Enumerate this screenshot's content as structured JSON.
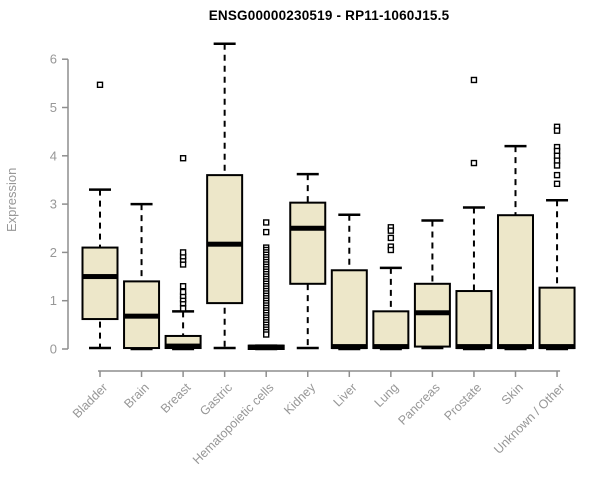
{
  "figure": {
    "title": "ENSG00000230519 - RP11-1060J15.5",
    "y_axis_label": "Expression"
  },
  "chart_data": {
    "type": "boxplot",
    "title": "ENSG00000230519 - RP11-1060J15.5",
    "xlabel": "",
    "ylabel": "Expression",
    "ylim": [
      0,
      6.4
    ],
    "yticks": [
      0,
      1,
      2,
      3,
      4,
      5,
      6
    ],
    "grid": false,
    "legend": false,
    "categories": [
      "Bladder",
      "Brain",
      "Breast",
      "Gastric",
      "Hematopoietic cells",
      "Kidney",
      "Liver",
      "Lung",
      "Pancreas",
      "Prostate",
      "Skin",
      "Unknown / Other"
    ],
    "series": [
      {
        "category": "Bladder",
        "whisker_low": 0.02,
        "q1": 0.62,
        "median": 1.5,
        "q3": 2.1,
        "whisker_high": 3.3,
        "outliers": [
          5.47
        ]
      },
      {
        "category": "Brain",
        "whisker_low": 0.0,
        "q1": 0.02,
        "median": 0.68,
        "q3": 1.4,
        "whisker_high": 3.0,
        "outliers": []
      },
      {
        "category": "Breast",
        "whisker_low": 0.0,
        "q1": 0.02,
        "median": 0.06,
        "q3": 0.27,
        "whisker_high": 0.78,
        "outliers": [
          0.84,
          0.95,
          1.03,
          1.1,
          1.18,
          1.3,
          1.75,
          1.85,
          1.92,
          2.0,
          3.95
        ]
      },
      {
        "category": "Gastric",
        "whisker_low": 0.02,
        "q1": 0.95,
        "median": 2.17,
        "q3": 3.6,
        "whisker_high": 6.32,
        "outliers": []
      },
      {
        "category": "Hematopoietic cells",
        "whisker_low": 0.0,
        "q1": 0.0,
        "median": 0.04,
        "q3": 0.07,
        "whisker_high": 0.07,
        "outliers": [
          2.62,
          2.42,
          2.1,
          2.05,
          2.0,
          1.95,
          1.9,
          1.85,
          1.8,
          1.75,
          1.7,
          1.65,
          1.6,
          1.55,
          1.5,
          1.45,
          1.4,
          1.35,
          1.3,
          1.25,
          1.2,
          1.15,
          1.1,
          1.05,
          1.0,
          0.95,
          0.9,
          0.85,
          0.8,
          0.75,
          0.7,
          0.65,
          0.6,
          0.55,
          0.5,
          0.45,
          0.4,
          0.35,
          0.3
        ]
      },
      {
        "category": "Kidney",
        "whisker_low": 0.02,
        "q1": 1.35,
        "median": 2.5,
        "q3": 3.03,
        "whisker_high": 3.62,
        "outliers": []
      },
      {
        "category": "Liver",
        "whisker_low": 0.0,
        "q1": 0.02,
        "median": 0.05,
        "q3": 1.63,
        "whisker_high": 2.78,
        "outliers": []
      },
      {
        "category": "Lung",
        "whisker_low": 0.0,
        "q1": 0.02,
        "median": 0.05,
        "q3": 0.78,
        "whisker_high": 1.68,
        "outliers": [
          2.52,
          2.45,
          2.3,
          2.12,
          2.05
        ]
      },
      {
        "category": "Pancreas",
        "whisker_low": 0.02,
        "q1": 0.05,
        "median": 0.75,
        "q3": 1.35,
        "whisker_high": 2.66,
        "outliers": []
      },
      {
        "category": "Prostate",
        "whisker_low": 0.0,
        "q1": 0.02,
        "median": 0.05,
        "q3": 1.2,
        "whisker_high": 2.93,
        "outliers": [
          3.85,
          5.57
        ]
      },
      {
        "category": "Skin",
        "whisker_low": 0.0,
        "q1": 0.02,
        "median": 0.05,
        "q3": 2.77,
        "whisker_high": 4.2,
        "outliers": []
      },
      {
        "category": "Unknown / Other",
        "whisker_low": 0.0,
        "q1": 0.02,
        "median": 0.05,
        "q3": 1.27,
        "whisker_high": 3.08,
        "outliers": [
          4.6,
          4.52,
          4.18,
          4.1,
          4.0,
          3.9,
          3.8,
          3.6,
          3.42
        ]
      }
    ],
    "style": {
      "box_fill": "#EDE7C9",
      "box_border": "#000000",
      "median_color": "#000000",
      "whisker_color": "#000000",
      "outlier_color": "#000000",
      "outlier_fill": "#ffffff",
      "outlier_shape": "open-square",
      "axis_color": "#8E8E8E",
      "label_color": "#979797",
      "title_color": "#000000"
    }
  }
}
